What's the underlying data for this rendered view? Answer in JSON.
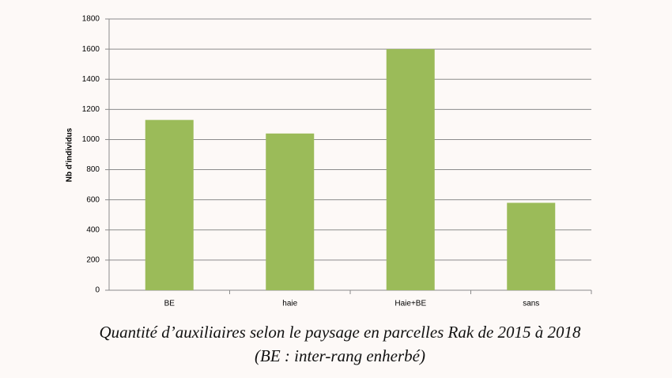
{
  "chart_data": {
    "type": "bar",
    "y_label": "Nb d'individus",
    "caption": "Quantité d’auxiliaires selon le paysage en parcelles Rak de 2015 à 2018 (BE : inter-rang enherbé)",
    "categories": [
      "BE",
      "haie",
      "Haie+BE",
      "sans"
    ],
    "values": [
      1130,
      1040,
      1600,
      580
    ],
    "color": "#9bbb59",
    "ylim": [
      0,
      1800
    ],
    "yticks": [
      0,
      200,
      400,
      600,
      800,
      1000,
      1200,
      1400,
      1600,
      1800
    ],
    "grid": true
  }
}
